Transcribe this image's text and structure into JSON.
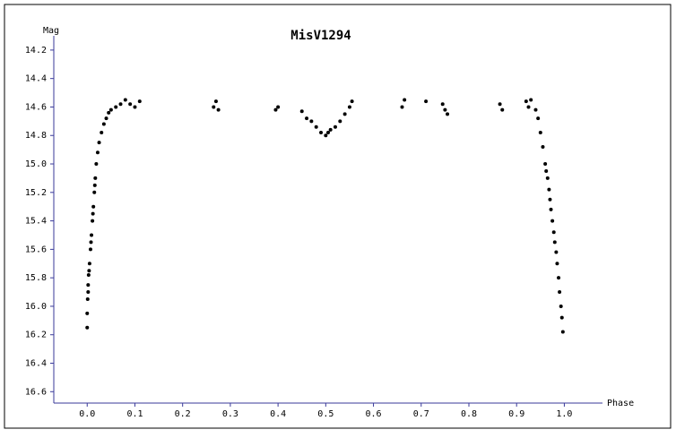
{
  "chart_data": {
    "type": "scatter",
    "title": "MisV1294",
    "x_label": "Phase",
    "y_label": "Mag",
    "xlim": [
      -0.07,
      1.08
    ],
    "ylim": [
      16.68,
      14.1
    ],
    "xticks": [
      {
        "value": 0,
        "label": "0.0"
      },
      0.1,
      0.2,
      0.3,
      0.4,
      0.5,
      0.6,
      0.7,
      0.8,
      0.9,
      {
        "value": 1,
        "label": "1.0"
      }
    ],
    "yticks": [
      14.2,
      14.4,
      14.6,
      14.8,
      {
        "value": 15,
        "label": "15.0"
      },
      15.2,
      15.4,
      15.6,
      15.8,
      {
        "value": 16,
        "label": "16.0"
      },
      16.2,
      16.4,
      16.6
    ],
    "series": [
      {
        "color": "#000000",
        "x": [
          0.0,
          0.0,
          0.001,
          0.002,
          0.003,
          0.005,
          0.007,
          0.009,
          0.011,
          0.013,
          0.015,
          0.017,
          0.019,
          0.022,
          0.025,
          0.03,
          0.035,
          0.04,
          0.045,
          0.05,
          0.06,
          0.07,
          0.08,
          0.09,
          0.1,
          0.11,
          0.002,
          0.004,
          0.008,
          0.012,
          0.016,
          0.265,
          0.27,
          0.275,
          0.395,
          0.4,
          0.45,
          0.46,
          0.47,
          0.48,
          0.49,
          0.5,
          0.505,
          0.51,
          0.52,
          0.53,
          0.54,
          0.55,
          0.555,
          0.66,
          0.665,
          0.71,
          0.745,
          0.75,
          0.755,
          0.865,
          0.87,
          0.92,
          0.925,
          0.93,
          0.94,
          0.945,
          0.95,
          0.955,
          0.96,
          0.965,
          0.97,
          0.975,
          0.98,
          0.985,
          0.988,
          0.99,
          0.993,
          0.995,
          0.997,
          0.962,
          0.968,
          0.972,
          0.978,
          0.983
        ],
        "values": [
          16.15,
          16.05,
          15.95,
          15.85,
          15.78,
          15.7,
          15.6,
          15.5,
          15.4,
          15.3,
          15.2,
          15.1,
          15.0,
          14.92,
          14.85,
          14.78,
          14.72,
          14.68,
          14.64,
          14.62,
          14.6,
          14.58,
          14.55,
          14.58,
          14.6,
          14.56,
          15.9,
          15.75,
          15.55,
          15.35,
          15.15,
          14.6,
          14.56,
          14.62,
          14.62,
          14.6,
          14.63,
          14.68,
          14.7,
          14.74,
          14.78,
          14.8,
          14.78,
          14.76,
          14.74,
          14.7,
          14.65,
          14.6,
          14.56,
          14.6,
          14.55,
          14.56,
          14.58,
          14.62,
          14.65,
          14.58,
          14.62,
          14.56,
          14.6,
          14.55,
          14.62,
          14.68,
          14.78,
          14.88,
          15.0,
          15.1,
          15.25,
          15.4,
          15.55,
          15.7,
          15.8,
          15.9,
          16.0,
          16.08,
          16.18,
          15.05,
          15.18,
          15.32,
          15.48,
          15.62
        ]
      }
    ]
  }
}
